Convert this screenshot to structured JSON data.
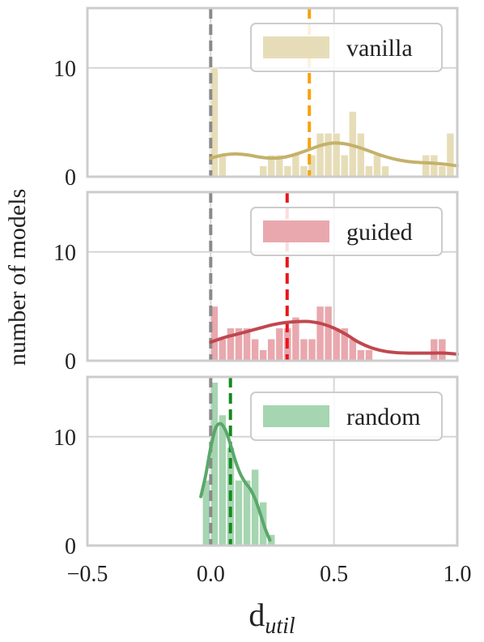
{
  "chart_data": [
    {
      "type": "histogram",
      "panel": "vanilla",
      "ylabel": "number of models",
      "yticks": [
        0,
        10
      ],
      "ylim": [
        0,
        15.5
      ],
      "xlim": [
        -0.5,
        1.0
      ],
      "legend": {
        "label": "vanilla",
        "placement": "top-right"
      },
      "colors": {
        "bar": "#e6ddb8",
        "kde": "#c4b16a",
        "mean_line": "#f5a30f",
        "zero_line": "#8a8a8a"
      },
      "bin_width": 0.033,
      "bins": [
        {
          "x0": 0.0,
          "x1": 0.033,
          "count": 10
        },
        {
          "x0": 0.033,
          "x1": 0.066,
          "count": 2
        },
        {
          "x0": 0.066,
          "x1": 0.099,
          "count": 0
        },
        {
          "x0": 0.099,
          "x1": 0.132,
          "count": 0
        },
        {
          "x0": 0.132,
          "x1": 0.165,
          "count": 0
        },
        {
          "x0": 0.165,
          "x1": 0.198,
          "count": 0
        },
        {
          "x0": 0.198,
          "x1": 0.231,
          "count": 1
        },
        {
          "x0": 0.231,
          "x1": 0.264,
          "count": 2
        },
        {
          "x0": 0.264,
          "x1": 0.297,
          "count": 2
        },
        {
          "x0": 0.297,
          "x1": 0.33,
          "count": 1
        },
        {
          "x0": 0.33,
          "x1": 0.363,
          "count": 2
        },
        {
          "x0": 0.363,
          "x1": 0.396,
          "count": 1
        },
        {
          "x0": 0.396,
          "x1": 0.429,
          "count": 2
        },
        {
          "x0": 0.429,
          "x1": 0.462,
          "count": 4
        },
        {
          "x0": 0.462,
          "x1": 0.495,
          "count": 4
        },
        {
          "x0": 0.495,
          "x1": 0.528,
          "count": 4
        },
        {
          "x0": 0.528,
          "x1": 0.561,
          "count": 2
        },
        {
          "x0": 0.561,
          "x1": 0.594,
          "count": 6
        },
        {
          "x0": 0.594,
          "x1": 0.627,
          "count": 4
        },
        {
          "x0": 0.627,
          "x1": 0.66,
          "count": 1
        },
        {
          "x0": 0.66,
          "x1": 0.693,
          "count": 2
        },
        {
          "x0": 0.693,
          "x1": 0.726,
          "count": 1
        },
        {
          "x0": 0.726,
          "x1": 0.759,
          "count": 0
        },
        {
          "x0": 0.759,
          "x1": 0.792,
          "count": 0
        },
        {
          "x0": 0.792,
          "x1": 0.825,
          "count": 0
        },
        {
          "x0": 0.825,
          "x1": 0.858,
          "count": 0
        },
        {
          "x0": 0.858,
          "x1": 0.891,
          "count": 2
        },
        {
          "x0": 0.891,
          "x1": 0.924,
          "count": 2
        },
        {
          "x0": 0.924,
          "x1": 0.957,
          "count": 1
        },
        {
          "x0": 0.957,
          "x1": 0.99,
          "count": 4
        }
      ],
      "kde": {
        "x": [
          0.0,
          0.05,
          0.1,
          0.15,
          0.2,
          0.25,
          0.3,
          0.35,
          0.4,
          0.45,
          0.5,
          0.55,
          0.6,
          0.65,
          0.7,
          0.75,
          0.8,
          0.85,
          0.9,
          0.95,
          1.0
        ],
        "y": [
          1.7,
          2.0,
          2.1,
          2.0,
          1.8,
          1.7,
          1.8,
          2.1,
          2.5,
          2.9,
          3.1,
          3.0,
          2.7,
          2.3,
          1.9,
          1.6,
          1.4,
          1.3,
          1.25,
          1.15,
          1.0
        ]
      },
      "mean": 0.4,
      "reference_line": 0.0
    },
    {
      "type": "histogram",
      "panel": "guided",
      "ylabel": "number of models",
      "yticks": [
        0,
        10
      ],
      "ylim": [
        0,
        15.5
      ],
      "xlim": [
        -0.5,
        1.0
      ],
      "legend": {
        "label": "guided",
        "placement": "top-right"
      },
      "colors": {
        "bar": "#e8a8ae",
        "kde": "#c0474f",
        "mean_line": "#e8151b",
        "zero_line": "#8a8a8a"
      },
      "bin_width": 0.033,
      "bins": [
        {
          "x0": 0.0,
          "x1": 0.033,
          "count": 5
        },
        {
          "x0": 0.033,
          "x1": 0.066,
          "count": 2
        },
        {
          "x0": 0.066,
          "x1": 0.099,
          "count": 3
        },
        {
          "x0": 0.099,
          "x1": 0.132,
          "count": 3
        },
        {
          "x0": 0.132,
          "x1": 0.165,
          "count": 3
        },
        {
          "x0": 0.165,
          "x1": 0.198,
          "count": 2
        },
        {
          "x0": 0.198,
          "x1": 0.231,
          "count": 1
        },
        {
          "x0": 0.231,
          "x1": 0.264,
          "count": 2
        },
        {
          "x0": 0.264,
          "x1": 0.297,
          "count": 3
        },
        {
          "x0": 0.297,
          "x1": 0.33,
          "count": 3
        },
        {
          "x0": 0.33,
          "x1": 0.363,
          "count": 4
        },
        {
          "x0": 0.363,
          "x1": 0.396,
          "count": 2
        },
        {
          "x0": 0.396,
          "x1": 0.429,
          "count": 2
        },
        {
          "x0": 0.429,
          "x1": 0.462,
          "count": 5
        },
        {
          "x0": 0.462,
          "x1": 0.495,
          "count": 5
        },
        {
          "x0": 0.495,
          "x1": 0.528,
          "count": 3
        },
        {
          "x0": 0.528,
          "x1": 0.561,
          "count": 3
        },
        {
          "x0": 0.561,
          "x1": 0.594,
          "count": 2
        },
        {
          "x0": 0.594,
          "x1": 0.627,
          "count": 1
        },
        {
          "x0": 0.627,
          "x1": 0.66,
          "count": 1
        },
        {
          "x0": 0.66,
          "x1": 0.693,
          "count": 0
        },
        {
          "x0": 0.693,
          "x1": 0.726,
          "count": 0
        },
        {
          "x0": 0.726,
          "x1": 0.759,
          "count": 0
        },
        {
          "x0": 0.759,
          "x1": 0.792,
          "count": 0
        },
        {
          "x0": 0.792,
          "x1": 0.825,
          "count": 0
        },
        {
          "x0": 0.825,
          "x1": 0.858,
          "count": 0
        },
        {
          "x0": 0.858,
          "x1": 0.891,
          "count": 0
        },
        {
          "x0": 0.891,
          "x1": 0.924,
          "count": 2
        },
        {
          "x0": 0.924,
          "x1": 0.957,
          "count": 2
        },
        {
          "x0": 0.957,
          "x1": 0.99,
          "count": 0
        }
      ],
      "kde": {
        "x": [
          0.0,
          0.05,
          0.1,
          0.15,
          0.2,
          0.25,
          0.3,
          0.35,
          0.4,
          0.45,
          0.5,
          0.55,
          0.6,
          0.65,
          0.7,
          0.75,
          0.8,
          0.85,
          0.9,
          0.95,
          1.0
        ],
        "y": [
          1.7,
          2.1,
          2.4,
          2.7,
          3.0,
          3.3,
          3.5,
          3.6,
          3.6,
          3.4,
          3.0,
          2.4,
          1.7,
          1.2,
          0.9,
          0.75,
          0.7,
          0.7,
          0.7,
          0.7,
          0.6
        ]
      },
      "mean": 0.31,
      "reference_line": 0.0
    },
    {
      "type": "histogram",
      "panel": "random",
      "ylabel": "number of models",
      "xlabel": "d_util",
      "xticks": [
        -0.5,
        0.0,
        0.5,
        1.0
      ],
      "xtick_labels": [
        "−0.5",
        "0.0",
        "0.5",
        "1.0"
      ],
      "yticks": [
        0,
        10
      ],
      "ylim": [
        0,
        15.5
      ],
      "xlim": [
        -0.5,
        1.0
      ],
      "legend": {
        "label": "random",
        "placement": "top-right"
      },
      "colors": {
        "bar": "#a6d5b1",
        "kde": "#5aa86a",
        "mean_line": "#138a1f",
        "zero_line": "#8a8a8a"
      },
      "bin_width": 0.033,
      "bins": [
        {
          "x0": -0.033,
          "x1": 0.0,
          "count": 6
        },
        {
          "x0": 0.0,
          "x1": 0.033,
          "count": 15
        },
        {
          "x0": 0.033,
          "x1": 0.066,
          "count": 12
        },
        {
          "x0": 0.066,
          "x1": 0.099,
          "count": 9
        },
        {
          "x0": 0.099,
          "x1": 0.132,
          "count": 6
        },
        {
          "x0": 0.132,
          "x1": 0.165,
          "count": 6
        },
        {
          "x0": 0.165,
          "x1": 0.198,
          "count": 7
        },
        {
          "x0": 0.198,
          "x1": 0.231,
          "count": 4
        },
        {
          "x0": 0.231,
          "x1": 0.264,
          "count": 1
        }
      ],
      "kde": {
        "x": [
          -0.04,
          -0.02,
          0.0,
          0.02,
          0.04,
          0.06,
          0.08,
          0.1,
          0.12,
          0.14,
          0.16,
          0.18,
          0.2,
          0.22,
          0.24
        ],
        "y": [
          4.5,
          6.5,
          9.0,
          10.8,
          11.2,
          10.6,
          9.3,
          7.8,
          6.6,
          5.8,
          5.2,
          4.3,
          3.0,
          1.6,
          0.5
        ]
      },
      "mean": 0.08,
      "reference_line": 0.0
    }
  ]
}
